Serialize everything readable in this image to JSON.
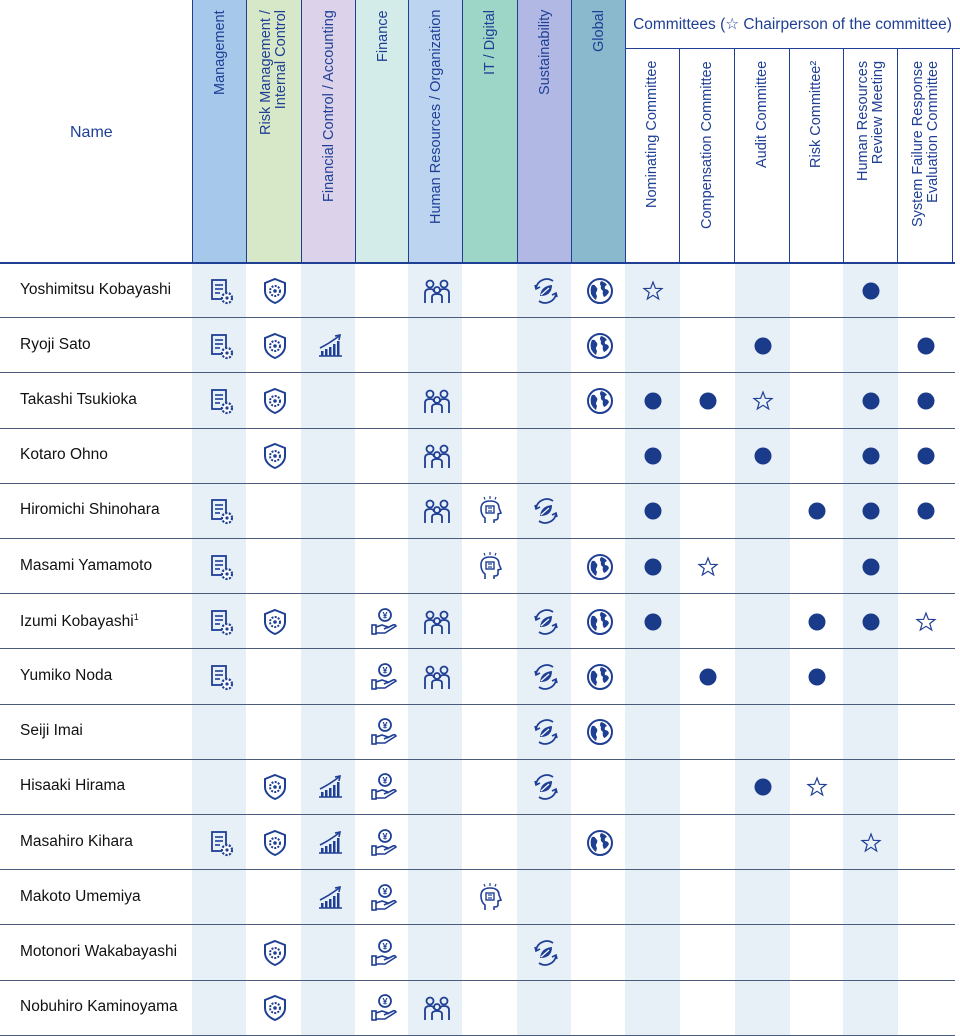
{
  "header": {
    "name_label": "Name",
    "skills": [
      {
        "label_lines": [
          "Management"
        ],
        "color": "#a6c8ea",
        "bodycolor": "#e7eff7"
      },
      {
        "label_lines": [
          "Risk Management /",
          "Internal Control"
        ],
        "color": "#d7e8c9",
        "bodycolor": "#e7eff7"
      },
      {
        "label_lines": [
          "Financial Control / Accounting"
        ],
        "color": "#dcd3ea",
        "bodycolor": "#e7eff7"
      },
      {
        "label_lines": [
          "Finance"
        ],
        "color": "#d3ecea",
        "bodycolor": "#e7eff7"
      },
      {
        "label_lines": [
          "Human Resources / Organization"
        ],
        "color": "#bcd4ef",
        "bodycolor": "#e7eff7"
      },
      {
        "label_lines": [
          "IT / Digital"
        ],
        "color": "#9dd5c6",
        "bodycolor": "#e7eff7"
      },
      {
        "label_lines": [
          "Sustainability"
        ],
        "color": "#b2b8e4",
        "bodycolor": "#e7eff7"
      },
      {
        "label_lines": [
          "Global"
        ],
        "color": "#8ab8cc",
        "bodycolor": "#e7eff7"
      }
    ],
    "committees_title": "Committees (☆ Chairperson of the committee)",
    "committees": [
      {
        "label_lines": [
          "Nominating Committee"
        ]
      },
      {
        "label_lines": [
          "Compensation Committee"
        ]
      },
      {
        "label_lines": [
          "Audit Committee"
        ]
      },
      {
        "label_lines": [
          "Risk Committee²"
        ]
      },
      {
        "label_lines": [
          "Human Resources",
          "Review Meeting"
        ]
      },
      {
        "label_lines": [
          "System Failure Response",
          "Evaluation Committee"
        ]
      }
    ]
  },
  "skill_icons": [
    "management-icon",
    "risk-shield-icon",
    "chart-growth-icon",
    "finance-yen-hand-icon",
    "people-icon",
    "digital-head-icon",
    "sustainability-leaf-icon",
    "globe-icon"
  ],
  "rows": [
    {
      "name": "Yoshimitsu Kobayashi",
      "sup": "",
      "skills": [
        1,
        1,
        0,
        0,
        1,
        0,
        1,
        1
      ],
      "committees": [
        "star",
        "",
        "",
        "",
        "dot",
        ""
      ]
    },
    {
      "name": "Ryoji Sato",
      "sup": "",
      "skills": [
        1,
        1,
        1,
        0,
        0,
        0,
        0,
        1
      ],
      "committees": [
        "",
        "",
        "dot",
        "",
        "",
        "dot"
      ]
    },
    {
      "name": "Takashi Tsukioka",
      "sup": "",
      "skills": [
        1,
        1,
        0,
        0,
        1,
        0,
        0,
        1
      ],
      "committees": [
        "dot",
        "dot",
        "star",
        "",
        "dot",
        "dot"
      ]
    },
    {
      "name": "Kotaro Ohno",
      "sup": "",
      "skills": [
        0,
        1,
        0,
        0,
        1,
        0,
        0,
        0
      ],
      "committees": [
        "dot",
        "",
        "dot",
        "",
        "dot",
        "dot"
      ]
    },
    {
      "name": "Hiromichi Shinohara",
      "sup": "",
      "skills": [
        1,
        0,
        0,
        0,
        1,
        1,
        1,
        0
      ],
      "committees": [
        "dot",
        "",
        "",
        "dot",
        "dot",
        "dot"
      ]
    },
    {
      "name": "Masami Yamamoto",
      "sup": "",
      "skills": [
        1,
        0,
        0,
        0,
        0,
        1,
        0,
        1
      ],
      "committees": [
        "dot",
        "star",
        "",
        "",
        "dot",
        ""
      ]
    },
    {
      "name": "Izumi Kobayashi",
      "sup": "1",
      "skills": [
        1,
        1,
        0,
        1,
        1,
        0,
        1,
        1
      ],
      "committees": [
        "dot",
        "",
        "",
        "dot",
        "dot",
        "star"
      ]
    },
    {
      "name": "Yumiko Noda",
      "sup": "",
      "skills": [
        1,
        0,
        0,
        1,
        1,
        0,
        1,
        1
      ],
      "committees": [
        "",
        "dot",
        "",
        "dot",
        "",
        ""
      ]
    },
    {
      "name": "Seiji Imai",
      "sup": "",
      "skills": [
        0,
        0,
        0,
        1,
        0,
        0,
        1,
        1
      ],
      "committees": [
        "",
        "",
        "",
        "",
        "",
        ""
      ]
    },
    {
      "name": "Hisaaki Hirama",
      "sup": "",
      "skills": [
        0,
        1,
        1,
        1,
        0,
        0,
        1,
        0
      ],
      "committees": [
        "",
        "",
        "dot",
        "star",
        "",
        ""
      ]
    },
    {
      "name": "Masahiro Kihara",
      "sup": "",
      "skills": [
        1,
        1,
        1,
        1,
        0,
        0,
        0,
        1
      ],
      "committees": [
        "",
        "",
        "",
        "",
        "star",
        ""
      ]
    },
    {
      "name": "Makoto Umemiya",
      "sup": "",
      "skills": [
        0,
        0,
        1,
        1,
        0,
        1,
        0,
        0
      ],
      "committees": [
        "",
        "",
        "",
        "",
        "",
        ""
      ]
    },
    {
      "name": "Motonori Wakabayashi",
      "sup": "",
      "skills": [
        0,
        1,
        0,
        1,
        0,
        0,
        1,
        0
      ],
      "committees": [
        "",
        "",
        "",
        "",
        "",
        ""
      ]
    },
    {
      "name": "Nobuhiro Kaminoyama",
      "sup": "",
      "skills": [
        0,
        1,
        0,
        1,
        1,
        0,
        0,
        0
      ],
      "committees": [
        "",
        "",
        "",
        "",
        "",
        ""
      ]
    }
  ],
  "colors": {
    "accent": "#1f3f95",
    "dot": "#1a3a8a",
    "star": "#1f3f95",
    "alt_column": "#e7eff7"
  }
}
